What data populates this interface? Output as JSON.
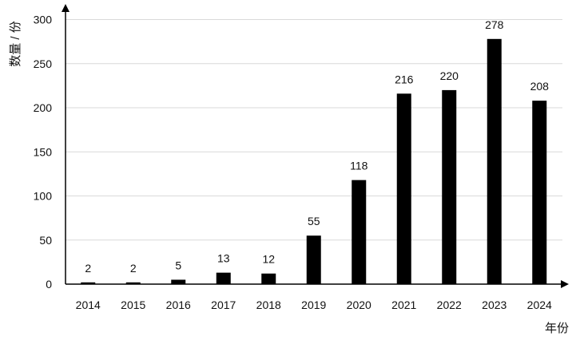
{
  "chart_data": {
    "type": "bar",
    "categories": [
      "2014",
      "2015",
      "2016",
      "2017",
      "2018",
      "2019",
      "2020",
      "2021",
      "2022",
      "2023",
      "2024"
    ],
    "values": [
      2,
      2,
      5,
      13,
      12,
      55,
      118,
      216,
      220,
      278,
      208
    ],
    "data_labels": [
      "2",
      "2",
      "5",
      "13",
      "12",
      "55",
      "118",
      "216",
      "220",
      "278",
      "208"
    ],
    "xlabel": "年份",
    "ylabel": "数量 / 份",
    "ylim": [
      0,
      300
    ],
    "yticks": [
      "0",
      "50",
      "100",
      "150",
      "200",
      "250",
      "300"
    ],
    "grid": "horizontal",
    "bar_color": "#000000",
    "grid_color": "#d9d9d9"
  }
}
